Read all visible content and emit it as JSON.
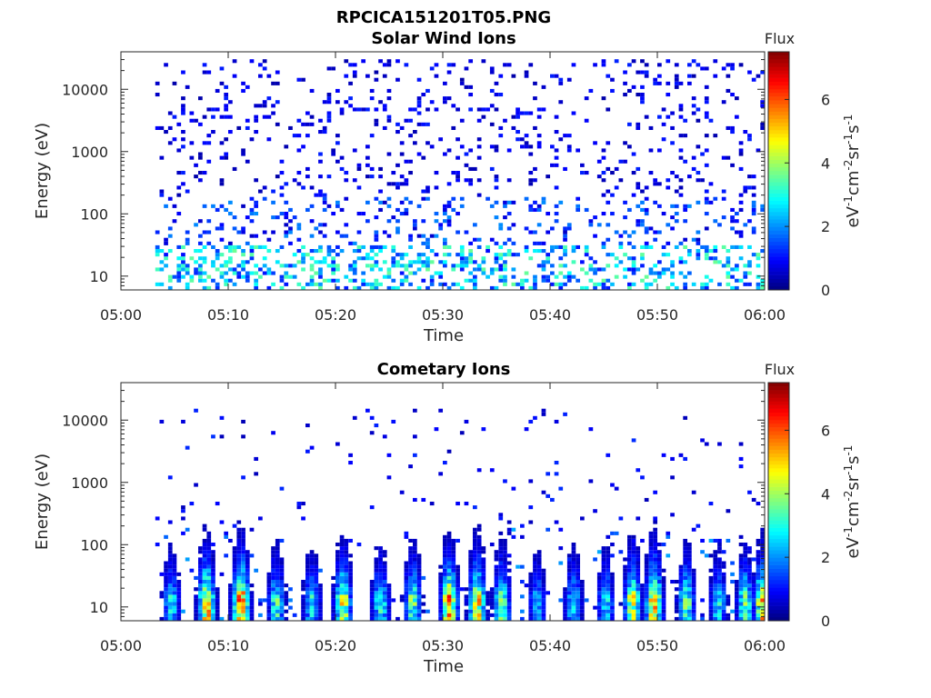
{
  "figure_title": "RPCICA151201T05.PNG",
  "colorbar": {
    "title": "Flux",
    "label_parts": [
      "eV",
      "-1",
      "cm",
      "-2",
      "sr",
      "-1",
      "s",
      "-1"
    ],
    "ticks": [
      "0",
      "2",
      "4",
      "6"
    ],
    "range": [
      0,
      7.5
    ],
    "colormap": "jet"
  },
  "chart_data": [
    {
      "type": "heatmap",
      "title": "Solar Wind Ions",
      "xlabel": "Time",
      "ylabel": "Energy (eV)",
      "x_range": [
        "05:00",
        "06:00"
      ],
      "x_ticks": [
        "05:00",
        "05:10",
        "05:20",
        "05:30",
        "05:40",
        "05:50",
        "06:00"
      ],
      "y_scale": "log",
      "y_range": [
        6,
        40000
      ],
      "y_ticks": [
        "10",
        "100",
        "1000",
        "10000"
      ],
      "data_start": "05:03",
      "z_range": [
        0,
        7.5
      ],
      "description_of_values": "sparse low flux (~0.5-2) scattered over 10 eV - 30 keV, slightly higher (~2-4) near 10-20 eV"
    },
    {
      "type": "heatmap",
      "title": "Cometary Ions",
      "xlabel": "Time",
      "ylabel": "Energy (eV)",
      "x_range": [
        "05:00",
        "06:00"
      ],
      "x_ticks": [
        "05:00",
        "05:10",
        "05:20",
        "05:30",
        "05:40",
        "05:50",
        "06:00"
      ],
      "y_scale": "log",
      "y_range": [
        6,
        40000
      ],
      "y_ticks": [
        "10",
        "100",
        "1000",
        "10000"
      ],
      "data_start": "05:03",
      "z_range": [
        0,
        7.5
      ],
      "bursts_minutes": [
        4.5,
        7.8,
        11.0,
        14.3,
        17.6,
        20.5,
        24.0,
        27.0,
        30.4,
        33.0,
        35.3,
        38.6,
        42.0,
        45.0,
        47.5,
        49.5,
        52.5,
        55.5,
        58.0,
        59.6
      ],
      "burst_peak_flux": [
        3,
        6,
        6.5,
        3.5,
        3,
        5,
        3.5,
        4,
        6,
        5.5,
        4,
        2.5,
        3,
        3,
        5,
        6,
        4,
        3,
        4,
        5.5
      ]
    }
  ]
}
